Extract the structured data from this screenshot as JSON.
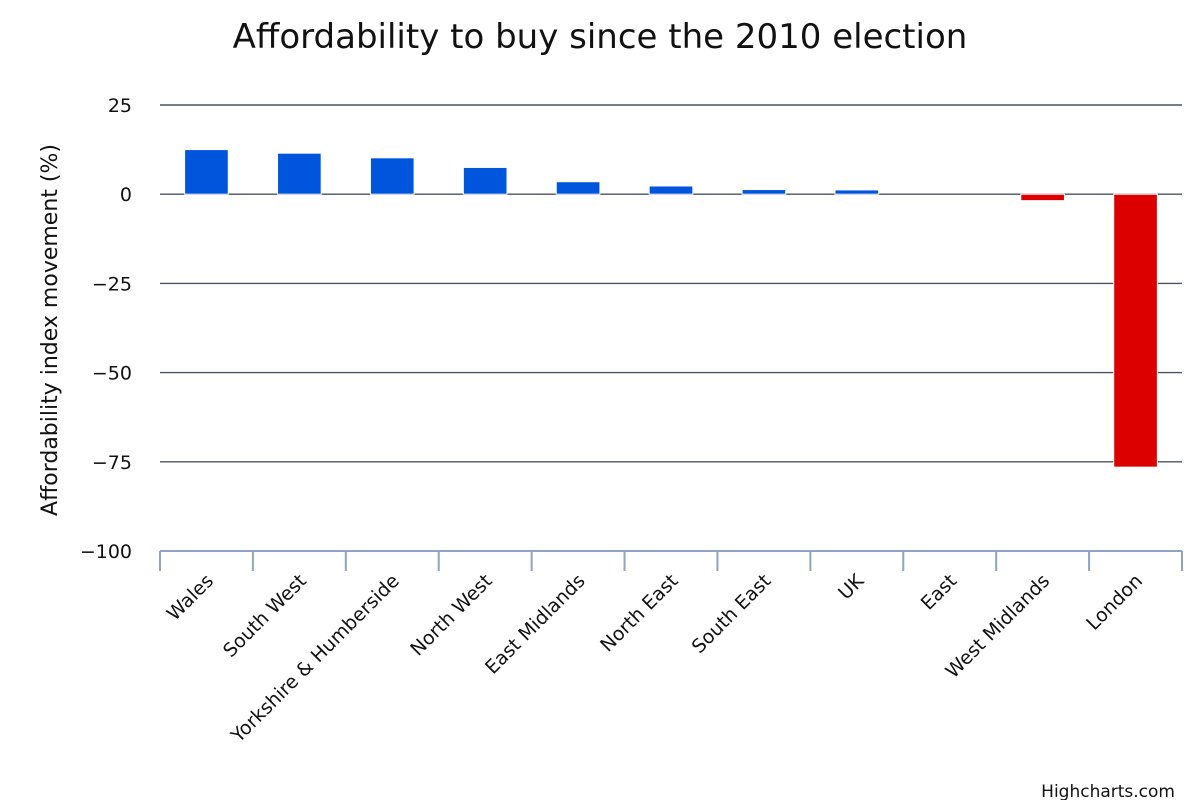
{
  "chart_data": {
    "type": "bar",
    "title": "Affordability to buy since the 2010 election",
    "xlabel": "",
    "ylabel": "Affordability index movement (%)",
    "ylim": [
      -100,
      25
    ],
    "yticks": [
      25,
      0,
      -25,
      -50,
      -75,
      -100
    ],
    "ytick_labels": [
      "25",
      "0",
      "−25",
      "−50",
      "−75",
      "−100"
    ],
    "categories": [
      "Wales",
      "South West",
      "Yorkshire & Humberside",
      "North West",
      "East Midlands",
      "North East",
      "South East",
      "UK",
      "East",
      "West Midlands",
      "London"
    ],
    "values": [
      12.5,
      11.5,
      10.2,
      7.5,
      3.5,
      2.3,
      1.3,
      1.2,
      0,
      -1.8,
      -76.5
    ],
    "grid": true,
    "legend": "none",
    "colors": {
      "positive": "#0055dd",
      "negative": "#dd0000",
      "gridline": "#4a5263",
      "axis": "#8fa4c0"
    },
    "credit": "Highcharts.com"
  }
}
